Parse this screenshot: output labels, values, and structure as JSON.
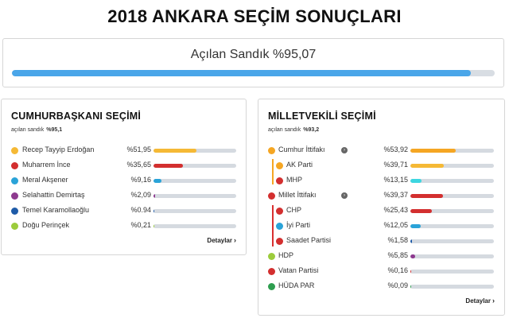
{
  "page": {
    "title": "2018 ANKARA SEÇİM SONUÇLARI"
  },
  "overall": {
    "label": "Açılan Sandık %95,07",
    "progress": 0.9507,
    "color": "#4aa6e9"
  },
  "presidential": {
    "title": "CUMHURBAŞKANI SEÇİMİ",
    "sub_label": "açılan sandık",
    "sub_value": "%95,1",
    "details_label": "Detaylar",
    "candidates": [
      {
        "name": "Recep Tayyip Erdoğan",
        "pct_label": "%51,95",
        "value": 51.95,
        "color": "#f5b935",
        "icon": "R"
      },
      {
        "name": "Muharrem İnce",
        "pct_label": "%35,65",
        "value": 35.65,
        "color": "#d32f2f",
        "icon": "M"
      },
      {
        "name": "Meral Akşener",
        "pct_label": "%9,16",
        "value": 9.16,
        "color": "#2aa3d8",
        "icon": "M"
      },
      {
        "name": "Selahattin Demirtaş",
        "pct_label": "%2,09",
        "value": 2.09,
        "color": "#8e3a8f",
        "icon": "S"
      },
      {
        "name": "Temel Karamollaoğlu",
        "pct_label": "%0.94",
        "value": 0.94,
        "color": "#1e5ba8",
        "icon": "T"
      },
      {
        "name": "Doğu Perinçek",
        "pct_label": "%0,21",
        "value": 0.21,
        "color": "#9ccc3c",
        "icon": "D"
      }
    ]
  },
  "parliament": {
    "title": "MİLLETVEKİLİ SEÇİMİ",
    "sub_label": "açılan sandık",
    "sub_value": "%93,2",
    "details_label": "Detaylar",
    "parties": [
      {
        "name": "Cumhur İttifakı",
        "pct_label": "%53,92",
        "value": 53.92,
        "color": "#f5a623",
        "icon_color": "#f5a623",
        "indent": false,
        "info": true
      },
      {
        "name": "AK Parti",
        "pct_label": "%39,71",
        "value": 39.71,
        "color": "#f5b935",
        "icon_color": "#f5a623",
        "indent": true,
        "info": false
      },
      {
        "name": "MHP",
        "pct_label": "%13,15",
        "value": 13.15,
        "color": "#3dd6e0",
        "icon_color": "#d32f2f",
        "indent": true,
        "info": false
      },
      {
        "name": "Millet İttifakı",
        "pct_label": "%39,37",
        "value": 39.37,
        "color": "#d32f2f",
        "icon_color": "#d32f2f",
        "indent": false,
        "info": true
      },
      {
        "name": "CHP",
        "pct_label": "%25,43",
        "value": 25.43,
        "color": "#d32f2f",
        "icon_color": "#d32f2f",
        "indent": true,
        "info": false
      },
      {
        "name": "İyi Parti",
        "pct_label": "%12,05",
        "value": 12.05,
        "color": "#2aa3d8",
        "icon_color": "#2aa3d8",
        "indent": true,
        "info": false
      },
      {
        "name": "Saadet Partisi",
        "pct_label": "%1,58",
        "value": 1.58,
        "color": "#1e5ba8",
        "icon_color": "#d32f2f",
        "indent": true,
        "info": false
      },
      {
        "name": "HDP",
        "pct_label": "%5,85",
        "value": 5.85,
        "color": "#8e3a8f",
        "icon_color": "#9ccc3c",
        "indent": false,
        "info": false
      },
      {
        "name": "Vatan Partisi",
        "pct_label": "%0,16",
        "value": 0.16,
        "color": "#d32f2f",
        "icon_color": "#d32f2f",
        "indent": false,
        "info": false
      },
      {
        "name": "HÜDA PAR",
        "pct_label": "%0,09",
        "value": 0.09,
        "color": "#2e9e4f",
        "icon_color": "#2e9e4f",
        "indent": false,
        "info": false
      }
    ]
  }
}
